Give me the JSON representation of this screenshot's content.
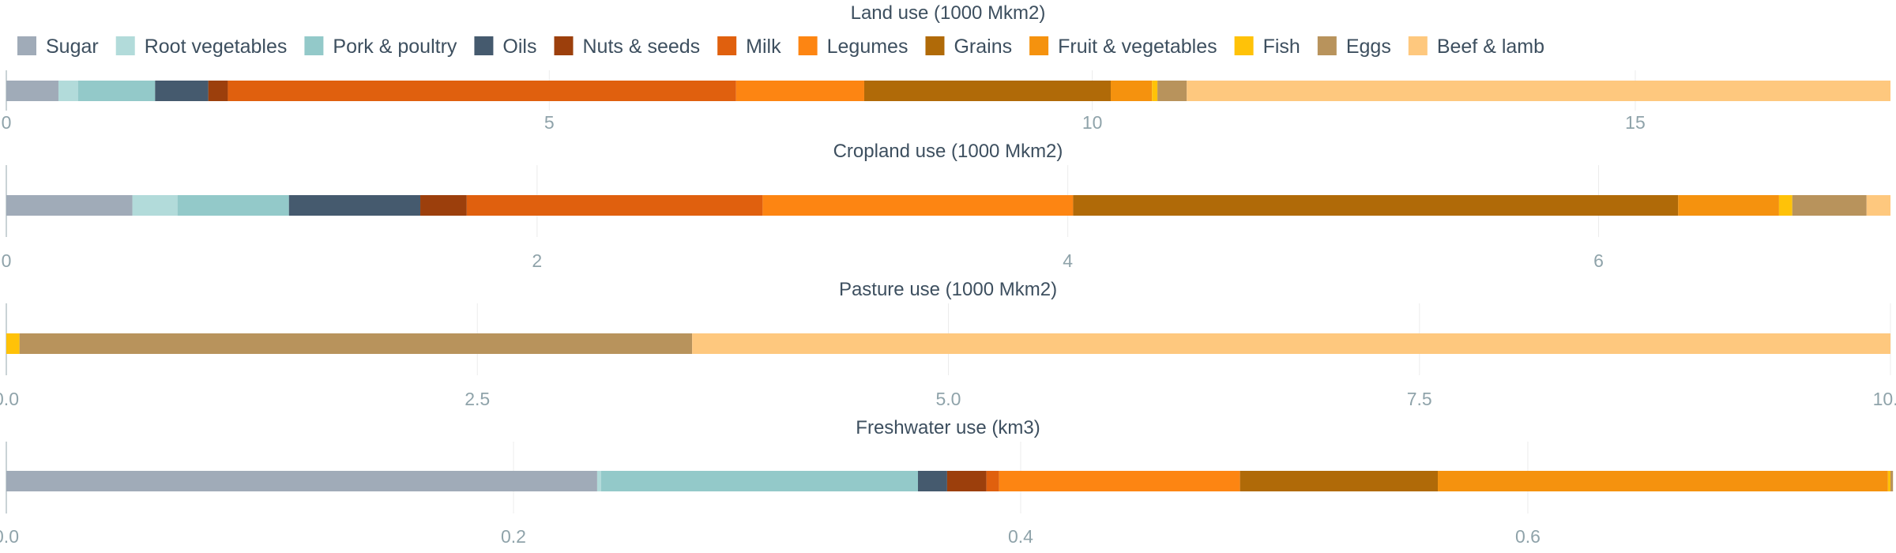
{
  "legend": [
    {
      "name": "Sugar",
      "color": "#a0abb8"
    },
    {
      "name": "Root vegetables",
      "color": "#b2dbda"
    },
    {
      "name": "Pork & poultry",
      "color": "#93c9c9"
    },
    {
      "name": "Oils",
      "color": "#455a6e"
    },
    {
      "name": "Nuts & seeds",
      "color": "#9c3f0c"
    },
    {
      "name": "Milk",
      "color": "#e0600e"
    },
    {
      "name": "Legumes",
      "color": "#fd8512"
    },
    {
      "name": "Grains",
      "color": "#b06a08"
    },
    {
      "name": "Fruit & vegetables",
      "color": "#f5920e"
    },
    {
      "name": "Fish",
      "color": "#ffc208"
    },
    {
      "name": "Eggs",
      "color": "#b8935c"
    },
    {
      "name": "Beef & lamb",
      "color": "#fec87e"
    }
  ],
  "chart_data": [
    {
      "type": "bar",
      "orientation": "horizontal-stacked",
      "title": "Land use (1000 Mkm2)",
      "xlim": [
        0,
        17.35
      ],
      "ticks": [
        "0",
        "5",
        "10",
        "15"
      ],
      "tick_values": [
        0,
        5,
        10,
        15
      ],
      "categories": [
        "Sugar",
        "Root vegetables",
        "Pork & poultry",
        "Oils",
        "Nuts & seeds",
        "Milk",
        "Legumes",
        "Grains",
        "Fruit & vegetables",
        "Fish",
        "Eggs",
        "Beef & lamb"
      ],
      "values": [
        0.48,
        0.18,
        0.71,
        0.49,
        0.18,
        4.68,
        1.18,
        2.27,
        0.38,
        0.05,
        0.27,
        6.48
      ]
    },
    {
      "type": "bar",
      "orientation": "horizontal-stacked",
      "title": "Cropland use (1000 Mkm2)",
      "xlim": [
        0,
        7.1
      ],
      "ticks": [
        "0",
        "2",
        "4",
        "6"
      ],
      "tick_values": [
        0,
        2,
        4,
        6
      ],
      "categories": [
        "Sugar",
        "Root vegetables",
        "Pork & poultry",
        "Oils",
        "Nuts & seeds",
        "Milk",
        "Legumes",
        "Grains",
        "Fruit & vegetables",
        "Fish",
        "Eggs",
        "Beef & lamb"
      ],
      "values": [
        0.475,
        0.17,
        0.42,
        0.495,
        0.175,
        1.115,
        1.17,
        2.28,
        0.38,
        0.05,
        0.28,
        0.09
      ]
    },
    {
      "type": "bar",
      "orientation": "horizontal-stacked",
      "title": "Pasture use (1000 Mkm2)",
      "xlim": [
        0,
        10.0
      ],
      "ticks": [
        "0.0",
        "2.5",
        "5.0",
        "7.5",
        "10.0"
      ],
      "tick_values": [
        0,
        2.5,
        5,
        7.5,
        10
      ],
      "categories": [
        "Sugar",
        "Root vegetables",
        "Pork & poultry",
        "Oils",
        "Nuts & seeds",
        "Milk",
        "Legumes",
        "Grains",
        "Fruit & vegetables",
        "Fish",
        "Eggs",
        "Beef & lamb"
      ],
      "values": [
        0,
        0,
        0,
        0,
        0,
        0,
        0,
        0,
        0,
        0.07,
        3.57,
        6.36
      ]
    },
    {
      "type": "bar",
      "orientation": "horizontal-stacked",
      "title": "Freshwater use (km3)",
      "xlim": [
        0,
        0.743
      ],
      "ticks": [
        "0.0",
        "0.2",
        "0.4",
        "0.6"
      ],
      "tick_values": [
        0,
        0.2,
        0.4,
        0.6
      ],
      "categories": [
        "Sugar",
        "Root vegetables",
        "Pork & poultry",
        "Oils",
        "Nuts & seeds",
        "Milk",
        "Legumes",
        "Grains",
        "Fruit & vegetables",
        "Fish",
        "Eggs",
        "Beef & lamb"
      ],
      "values": [
        0.233,
        0.0015,
        0.125,
        0.0115,
        0.0155,
        0.005,
        0.095,
        0.078,
        0.1775,
        0.001,
        0.001,
        0
      ]
    }
  ]
}
